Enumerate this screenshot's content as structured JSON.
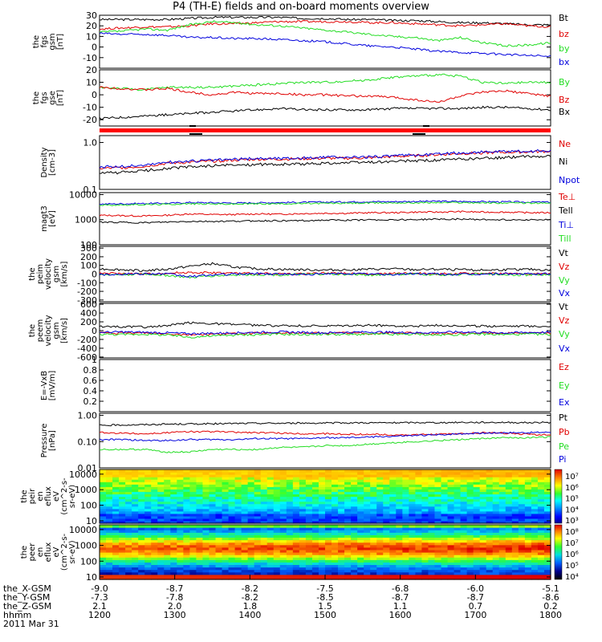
{
  "title": "P4 (TH-E) fields and on-board moments overview",
  "colors": {
    "black": "#000000",
    "red": "#e00000",
    "green": "#22dd22",
    "blue": "#0000dd"
  },
  "chart_data": [
    {
      "type": "line",
      "id": "fgs-gsm",
      "ylabel_lines": [
        "the",
        "fgs",
        "gsm",
        "[nT]"
      ],
      "ylim": [
        -20,
        30
      ],
      "yticks": [
        -10,
        0,
        10,
        20,
        30
      ],
      "series": [
        {
          "name": "Bt",
          "color": "#000000",
          "values": [
            26,
            26,
            26,
            26,
            27,
            28,
            28,
            28,
            28,
            27,
            27,
            26,
            26,
            25,
            25,
            24,
            23,
            23,
            22,
            21,
            21
          ]
        },
        {
          "name": "bz",
          "color": "#e00000",
          "values": [
            17,
            18,
            19,
            19,
            20,
            22,
            22,
            23,
            24,
            24,
            24,
            24,
            23,
            23,
            22,
            21,
            20,
            21,
            22,
            20,
            19
          ]
        },
        {
          "name": "by",
          "color": "#22dd22",
          "values": [
            14,
            15,
            17,
            16,
            21,
            24,
            23,
            21,
            20,
            18,
            16,
            14,
            12,
            10,
            9,
            6,
            9,
            4,
            1,
            2,
            4
          ]
        },
        {
          "name": "bx",
          "color": "#0000dd",
          "values": [
            13,
            12,
            12,
            11,
            9,
            9,
            8,
            8,
            7,
            6,
            5,
            3,
            1,
            0,
            -2,
            -4,
            -5,
            -6,
            -7,
            -8,
            -9
          ]
        }
      ]
    },
    {
      "type": "line",
      "id": "fgs-gse",
      "ylabel_lines": [
        "the",
        "fgs",
        "gse",
        "[nT]"
      ],
      "ylim": [
        -25,
        20
      ],
      "yticks": [
        -20,
        -10,
        0,
        10,
        20
      ],
      "series": [
        {
          "name": "By",
          "color": "#22dd22",
          "values": [
            6,
            5,
            4,
            6,
            6,
            6,
            7,
            8,
            9,
            10,
            10,
            11,
            12,
            14,
            15,
            16,
            15,
            10,
            9,
            10,
            10
          ]
        },
        {
          "name": "Bz",
          "color": "#e00000",
          "values": [
            6,
            5,
            4,
            5,
            2,
            0,
            2,
            1,
            1,
            0,
            0,
            -1,
            -1,
            -2,
            -4,
            -6,
            -1,
            2,
            3,
            1,
            -1
          ]
        },
        {
          "name": "Bx",
          "color": "#000000",
          "values": [
            -19,
            -18,
            -17,
            -16,
            -15,
            -14,
            -13,
            -12,
            -11,
            -12,
            -12,
            -12,
            -12,
            -11,
            -11,
            -11,
            -11,
            -10,
            -10,
            -11,
            -12
          ]
        }
      ]
    },
    {
      "type": "line",
      "id": "density",
      "ylabel_lines": [
        "Density",
        "[cm-3]"
      ],
      "yscale": "log",
      "ylim": [
        0.1,
        1.4
      ],
      "yticks": [
        0.1,
        1.0
      ],
      "series": [
        {
          "name": "Ne",
          "color": "#e00000",
          "values": [
            0.28,
            0.29,
            0.31,
            0.36,
            0.38,
            0.4,
            0.42,
            0.44,
            0.44,
            0.45,
            0.46,
            0.46,
            0.47,
            0.5,
            0.52,
            0.55,
            0.58,
            0.6,
            0.62,
            0.63,
            0.65
          ]
        },
        {
          "name": "Ni",
          "color": "#000000",
          "values": [
            0.22,
            0.23,
            0.25,
            0.28,
            0.3,
            0.32,
            0.33,
            0.34,
            0.34,
            0.35,
            0.36,
            0.37,
            0.38,
            0.39,
            0.41,
            0.42,
            0.44,
            0.46,
            0.48,
            0.5,
            0.52
          ]
        },
        {
          "name": "Npot",
          "color": "#0000dd",
          "values": [
            0.3,
            0.31,
            0.33,
            0.38,
            0.4,
            0.42,
            0.44,
            0.46,
            0.46,
            0.47,
            0.48,
            0.48,
            0.49,
            0.52,
            0.54,
            0.57,
            0.6,
            0.62,
            0.64,
            0.65,
            0.67
          ]
        }
      ]
    },
    {
      "type": "line",
      "id": "temperature",
      "ylabel_lines": [
        "magt3",
        "[eV]"
      ],
      "yscale": "log",
      "ylim": [
        100,
        12000
      ],
      "yticks": [
        100,
        1000,
        10000
      ],
      "series": [
        {
          "name": "Te⊥",
          "color": "#e00000",
          "values": [
            1500,
            1450,
            1400,
            1500,
            1700,
            1600,
            1600,
            1700,
            1650,
            1750,
            1800,
            1800,
            1900,
            1900,
            2000,
            2000,
            2100,
            2000,
            2000,
            1900,
            1900
          ]
        },
        {
          "name": "Tell",
          "color": "#000000",
          "values": [
            800,
            780,
            750,
            800,
            850,
            850,
            870,
            900,
            900,
            920,
            950,
            950,
            980,
            1000,
            1000,
            1050,
            1050,
            1000,
            1000,
            1000,
            980
          ]
        },
        {
          "name": "Ti⊥",
          "color": "#0000dd",
          "values": [
            4200,
            4300,
            4400,
            4500,
            4800,
            4700,
            4600,
            4700,
            4800,
            4900,
            5000,
            5100,
            5200,
            5200,
            5300,
            5400,
            5300,
            5200,
            5100,
            5000,
            5000
          ]
        },
        {
          "name": "Till",
          "color": "#22dd22",
          "values": [
            3800,
            3900,
            4000,
            4100,
            4300,
            4200,
            4200,
            4300,
            4300,
            4400,
            4500,
            4500,
            4600,
            4700,
            4700,
            4800,
            4800,
            4700,
            4600,
            4600,
            4500
          ]
        }
      ]
    },
    {
      "type": "line",
      "id": "peim-velocity",
      "ylabel_lines": [
        "the",
        "peim",
        "velocity",
        "gsm",
        "[km/s]"
      ],
      "ylim": [
        -320,
        320
      ],
      "yticks": [
        -300,
        -200,
        -100,
        0,
        100,
        200,
        300
      ],
      "series": [
        {
          "name": "Vt",
          "color": "#000000",
          "values": [
            60,
            50,
            40,
            55,
            90,
            120,
            80,
            60,
            55,
            50,
            45,
            50,
            55,
            60,
            50,
            55,
            50,
            45,
            50,
            55,
            45
          ]
        },
        {
          "name": "Vz",
          "color": "#e00000",
          "values": [
            10,
            5,
            0,
            10,
            20,
            15,
            10,
            5,
            0,
            5,
            10,
            5,
            0,
            5,
            10,
            0,
            5,
            10,
            5,
            0,
            5
          ]
        },
        {
          "name": "Vy",
          "color": "#22dd22",
          "values": [
            -10,
            -5,
            0,
            -15,
            -40,
            -20,
            -10,
            -5,
            -10,
            -5,
            0,
            -5,
            -10,
            -5,
            0,
            -10,
            -5,
            0,
            -5,
            -10,
            -5
          ]
        },
        {
          "name": "Vx",
          "color": "#0000dd",
          "values": [
            -5,
            0,
            5,
            0,
            -30,
            -10,
            0,
            5,
            0,
            -5,
            0,
            5,
            0,
            -5,
            5,
            0,
            -5,
            0,
            5,
            0,
            0
          ]
        }
      ]
    },
    {
      "type": "line",
      "id": "peem-velocity",
      "ylabel_lines": [
        "the",
        "peem",
        "velocity",
        "gsm",
        "[km/s]"
      ],
      "ylim": [
        -620,
        620
      ],
      "yticks": [
        -600,
        -400,
        -200,
        0,
        200,
        400,
        600
      ],
      "series": [
        {
          "name": "Vt",
          "color": "#000000",
          "values": [
            100,
            90,
            80,
            110,
            180,
            160,
            140,
            120,
            110,
            110,
            100,
            110,
            120,
            110,
            100,
            120,
            110,
            100,
            110,
            100,
            100
          ]
        },
        {
          "name": "Vz",
          "color": "#e00000",
          "values": [
            -50,
            -60,
            -50,
            -70,
            -90,
            -80,
            -70,
            -60,
            -60,
            -50,
            -60,
            -50,
            -60,
            -50,
            -60,
            -70,
            -60,
            -50,
            -60,
            -50,
            -60
          ]
        },
        {
          "name": "Vy",
          "color": "#22dd22",
          "values": [
            -80,
            -90,
            -80,
            -100,
            -150,
            -120,
            -100,
            -90,
            -80,
            -90,
            -80,
            -90,
            -80,
            -90,
            -80,
            -100,
            -90,
            -80,
            -90,
            -80,
            -90
          ]
        },
        {
          "name": "Vx",
          "color": "#0000dd",
          "values": [
            -40,
            -30,
            -40,
            -50,
            -70,
            -60,
            -50,
            -40,
            -30,
            -40,
            -50,
            -40,
            -30,
            -40,
            -50,
            -40,
            -30,
            -40,
            -50,
            -40,
            -40
          ]
        }
      ]
    },
    {
      "type": "line",
      "id": "efield",
      "ylabel_lines": [
        "E=-VxB",
        "[mV/m]"
      ],
      "ylim": [
        0,
        1.0
      ],
      "yticks": [
        0.2,
        0.4,
        0.6,
        0.8,
        1.0
      ],
      "series": [
        {
          "name": "Ez",
          "color": "#e00000",
          "values": []
        },
        {
          "name": "Ey",
          "color": "#22dd22",
          "values": []
        },
        {
          "name": "Ex",
          "color": "#0000dd",
          "values": []
        }
      ]
    },
    {
      "type": "line",
      "id": "pressure",
      "ylabel_lines": [
        "Pressure",
        "[nPa]"
      ],
      "yscale": "log",
      "ylim": [
        0.01,
        1.2
      ],
      "yticks": [
        0.01,
        0.1,
        1.0
      ],
      "series": [
        {
          "name": "Pt",
          "color": "#000000",
          "values": [
            0.42,
            0.43,
            0.44,
            0.46,
            0.47,
            0.48,
            0.49,
            0.5,
            0.5,
            0.51,
            0.51,
            0.52,
            0.52,
            0.52,
            0.53,
            0.53,
            0.54,
            0.54,
            0.54,
            0.53,
            0.53
          ]
        },
        {
          "name": "Pb",
          "color": "#e00000",
          "values": [
            0.22,
            0.21,
            0.2,
            0.22,
            0.24,
            0.24,
            0.23,
            0.22,
            0.21,
            0.2,
            0.2,
            0.19,
            0.19,
            0.18,
            0.18,
            0.19,
            0.2,
            0.22,
            0.21,
            0.19,
            0.18
          ]
        },
        {
          "name": "Pe",
          "color": "#22dd22",
          "values": [
            0.05,
            0.05,
            0.05,
            0.04,
            0.04,
            0.05,
            0.05,
            0.05,
            0.06,
            0.06,
            0.07,
            0.07,
            0.08,
            0.09,
            0.1,
            0.11,
            0.12,
            0.13,
            0.14,
            0.14,
            0.15
          ]
        },
        {
          "name": "Pi",
          "color": "#0000dd",
          "values": [
            0.12,
            0.12,
            0.11,
            0.11,
            0.12,
            0.12,
            0.12,
            0.13,
            0.13,
            0.13,
            0.14,
            0.14,
            0.15,
            0.16,
            0.17,
            0.18,
            0.2,
            0.21,
            0.22,
            0.22,
            0.23
          ]
        }
      ]
    },
    {
      "type": "heatmap",
      "id": "peir-en-eflux",
      "ylabel_lines": [
        "the",
        "peir",
        "en",
        "eflux",
        "eV",
        "(cm^2-s-",
        "sr-eV)"
      ],
      "yscale": "log",
      "ylim": [
        7,
        20000
      ],
      "yticks": [
        10,
        100,
        1000,
        10000
      ],
      "colorbar_labels": [
        "10⁷",
        "10⁶",
        "10⁵",
        "10⁴",
        "10³"
      ],
      "colorbar_range_log": [
        3,
        7.2
      ]
    },
    {
      "type": "heatmap",
      "id": "peer-en-eflux",
      "ylabel_lines": [
        "the",
        "peer",
        "en",
        "eflux",
        "eV",
        "(cm^2-s-",
        "sr-eV)"
      ],
      "yscale": "log",
      "ylim": [
        7,
        20000
      ],
      "yticks": [
        10,
        100,
        1000,
        10000
      ],
      "colorbar_labels": [
        "10⁸",
        "10⁷",
        "10⁶",
        "10⁵",
        "10⁴"
      ],
      "colorbar_range_log": [
        3.7,
        8.2
      ]
    }
  ],
  "x_axis": {
    "tick_values": [
      "1200",
      "1300",
      "1400",
      "1500",
      "1600",
      "1700",
      "1800"
    ],
    "rows": [
      {
        "label": "the_X-GSM",
        "values": [
          "-9.0",
          "-8.7",
          "-8.2",
          "-7.5",
          "-6.8",
          "-6.0",
          "-5.1"
        ]
      },
      {
        "label": "the_Y-GSM",
        "values": [
          "-7.3",
          "-7.8",
          "-8.2",
          "-8.5",
          "-8.7",
          "-8.7",
          "-8.6"
        ]
      },
      {
        "label": "the_Z-GSM",
        "values": [
          "2.1",
          "2.0",
          "1.8",
          "1.5",
          "1.1",
          "0.7",
          "0.2"
        ]
      },
      {
        "label": "hhmm",
        "values": [
          "1200",
          "1300",
          "1400",
          "1500",
          "1600",
          "1700",
          "1800"
        ]
      }
    ],
    "date": "2011 Mar 31"
  }
}
